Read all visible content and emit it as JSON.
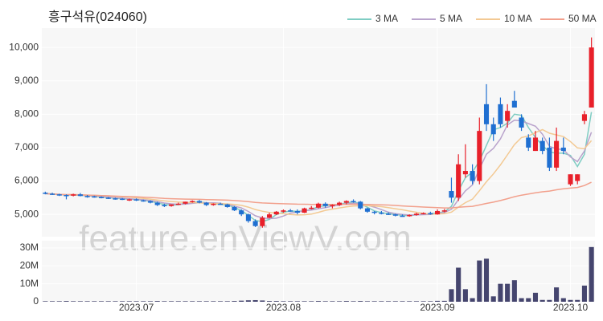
{
  "chart_data": {
    "type": "candlestick",
    "title": "흥구석유(024060)",
    "watermark": "feature.enViewV.com",
    "ma_legend": [
      {
        "name": "3 MA",
        "color": "#7fcdc3",
        "period": 3
      },
      {
        "name": "5 MA",
        "color": "#b9a3cc",
        "period": 5
      },
      {
        "name": "10 MA",
        "color": "#f3c993",
        "period": 10
      },
      {
        "name": "50 MA",
        "color": "#f2a08c",
        "period": 50
      }
    ],
    "up_color": "#e8202a",
    "down_color": "#1f6fd1",
    "volume_color": "#45456e",
    "categories": [
      null,
      null,
      null,
      null,
      null,
      null,
      null,
      null,
      null,
      null,
      null,
      null,
      null,
      "2023.07",
      null,
      null,
      null,
      null,
      null,
      null,
      null,
      null,
      null,
      null,
      null,
      null,
      null,
      null,
      null,
      null,
      null,
      null,
      null,
      null,
      "2023.08",
      null,
      null,
      null,
      null,
      null,
      null,
      null,
      null,
      null,
      null,
      null,
      null,
      null,
      null,
      null,
      null,
      null,
      null,
      null,
      null,
      null,
      "2023.09",
      null,
      null,
      null,
      null,
      null,
      null,
      null,
      null,
      null,
      null,
      null,
      null,
      null,
      null,
      null,
      null,
      null,
      null,
      "2023.10",
      null,
      null,
      null
    ],
    "ohlc": [
      [
        5650,
        5680,
        5600,
        5620
      ],
      [
        5620,
        5650,
        5580,
        5600
      ],
      [
        5600,
        5620,
        5550,
        5580
      ],
      [
        5580,
        5600,
        5450,
        5560
      ],
      [
        5560,
        5620,
        5540,
        5600
      ],
      [
        5600,
        5640,
        5540,
        5550
      ],
      [
        5550,
        5580,
        5500,
        5540
      ],
      [
        5540,
        5560,
        5500,
        5520
      ],
      [
        5520,
        5540,
        5480,
        5500
      ],
      [
        5500,
        5520,
        5460,
        5480
      ],
      [
        5480,
        5500,
        5440,
        5470
      ],
      [
        5470,
        5490,
        5430,
        5450
      ],
      [
        5450,
        5470,
        5400,
        5450
      ],
      [
        5450,
        5480,
        5400,
        5420
      ],
      [
        5420,
        5440,
        5380,
        5400
      ],
      [
        5400,
        5420,
        5330,
        5350
      ],
      [
        5350,
        5380,
        5250,
        5280
      ],
      [
        5280,
        5320,
        5220,
        5250
      ],
      [
        5250,
        5300,
        5230,
        5300
      ],
      [
        5300,
        5350,
        5280,
        5320
      ],
      [
        5320,
        5380,
        5300,
        5380
      ],
      [
        5380,
        5420,
        5350,
        5400
      ],
      [
        5400,
        5430,
        5330,
        5350
      ],
      [
        5350,
        5370,
        5250,
        5280
      ],
      [
        5280,
        5330,
        5260,
        5320
      ],
      [
        5320,
        5350,
        5290,
        5300
      ],
      [
        5300,
        5320,
        5200,
        5220
      ],
      [
        5220,
        5250,
        5100,
        5120
      ],
      [
        5120,
        5150,
        4950,
        5000
      ],
      [
        5000,
        5020,
        4750,
        4800
      ],
      [
        4800,
        4850,
        4620,
        4650
      ],
      [
        4650,
        4950,
        4600,
        4900
      ],
      [
        4900,
        5050,
        4880,
        5000
      ],
      [
        5000,
        5100,
        4980,
        5080
      ],
      [
        5080,
        5150,
        5050,
        5120
      ],
      [
        5120,
        5160,
        5080,
        5100
      ],
      [
        5100,
        5150,
        5000,
        5050
      ],
      [
        5050,
        5200,
        5040,
        5180
      ],
      [
        5180,
        5250,
        5150,
        5200
      ],
      [
        5200,
        5350,
        5180,
        5320
      ],
      [
        5320,
        5360,
        5200,
        5250
      ],
      [
        5250,
        5300,
        5180,
        5280
      ],
      [
        5280,
        5380,
        5250,
        5350
      ],
      [
        5350,
        5420,
        5300,
        5400
      ],
      [
        5400,
        5450,
        5350,
        5380
      ],
      [
        5380,
        5400,
        5150,
        5180
      ],
      [
        5180,
        5200,
        5050,
        5080
      ],
      [
        5080,
        5100,
        5000,
        5050
      ],
      [
        5050,
        5100,
        5000,
        5020
      ],
      [
        5020,
        5060,
        4980,
        5000
      ],
      [
        5000,
        5020,
        4940,
        4960
      ],
      [
        4960,
        5000,
        4930,
        4950
      ],
      [
        4950,
        5000,
        4930,
        4980
      ],
      [
        4980,
        5050,
        4960,
        5020
      ],
      [
        5020,
        5060,
        5000,
        5040
      ],
      [
        5040,
        5080,
        4990,
        5000
      ],
      [
        5000,
        5150,
        4990,
        5100
      ],
      [
        5100,
        5160,
        5060,
        5120
      ],
      [
        5700,
        6100,
        5350,
        5500
      ],
      [
        5500,
        6800,
        5400,
        6500
      ],
      [
        6200,
        7100,
        6100,
        6300
      ],
      [
        6300,
        6500,
        5900,
        6000
      ],
      [
        6000,
        7900,
        5900,
        7500
      ],
      [
        8300,
        8900,
        7500,
        7700
      ],
      [
        7700,
        7900,
        7200,
        7400
      ],
      [
        8300,
        8500,
        7600,
        7700
      ],
      [
        7800,
        8300,
        7600,
        8100
      ],
      [
        8400,
        8700,
        8200,
        8200
      ],
      [
        7900,
        8000,
        7500,
        7600
      ],
      [
        7300,
        7400,
        6900,
        7000
      ],
      [
        6900,
        7500,
        6900,
        7300
      ],
      [
        7200,
        7300,
        6800,
        6900
      ],
      [
        7000,
        7300,
        6300,
        6400
      ],
      [
        6400,
        7600,
        6300,
        7200
      ],
      [
        7000,
        7300,
        6800,
        6900
      ],
      [
        5900,
        6200,
        5850,
        6200
      ],
      [
        6000,
        6200,
        5900,
        6200
      ],
      [
        7800,
        8100,
        7700,
        8000
      ],
      [
        8200,
        10300,
        8200,
        10000
      ]
    ],
    "volume": [
      300000,
      300000,
      300000,
      400000,
      300000,
      300000,
      300000,
      300000,
      300000,
      300000,
      300000,
      300000,
      300000,
      300000,
      300000,
      300000,
      400000,
      300000,
      300000,
      300000,
      300000,
      300000,
      300000,
      300000,
      300000,
      300000,
      300000,
      400000,
      600000,
      800000,
      900000,
      700000,
      400000,
      400000,
      300000,
      300000,
      300000,
      300000,
      300000,
      400000,
      300000,
      300000,
      300000,
      400000,
      300000,
      400000,
      300000,
      300000,
      300000,
      300000,
      300000,
      300000,
      300000,
      300000,
      300000,
      300000,
      500000,
      500000,
      7000000,
      19000000,
      7000000,
      2000000,
      23000000,
      24000000,
      3000000,
      10000000,
      10000000,
      12000000,
      2000000,
      2000000,
      5000000,
      1000000,
      1000000,
      8000000,
      2000000,
      1000000,
      1000000,
      9000000,
      30500000
    ],
    "ylim": [
      4330,
      10580
    ],
    "yticks": [
      {
        "value": 5000,
        "label": "5,000"
      },
      {
        "value": 6000,
        "label": "6,000"
      },
      {
        "value": 7000,
        "label": "7,000"
      },
      {
        "value": 8000,
        "label": "8,000"
      },
      {
        "value": 9000,
        "label": "9,000"
      },
      {
        "value": 10000,
        "label": "10,000"
      }
    ],
    "y2lim": [
      0,
      34000000
    ],
    "y2ticks": [
      0,
      {
        "value": 10000000,
        "label": "10M"
      },
      {
        "value": 20000000,
        "label": "20M"
      },
      {
        "value": 30000000,
        "label": "30M"
      }
    ],
    "grid": true
  }
}
